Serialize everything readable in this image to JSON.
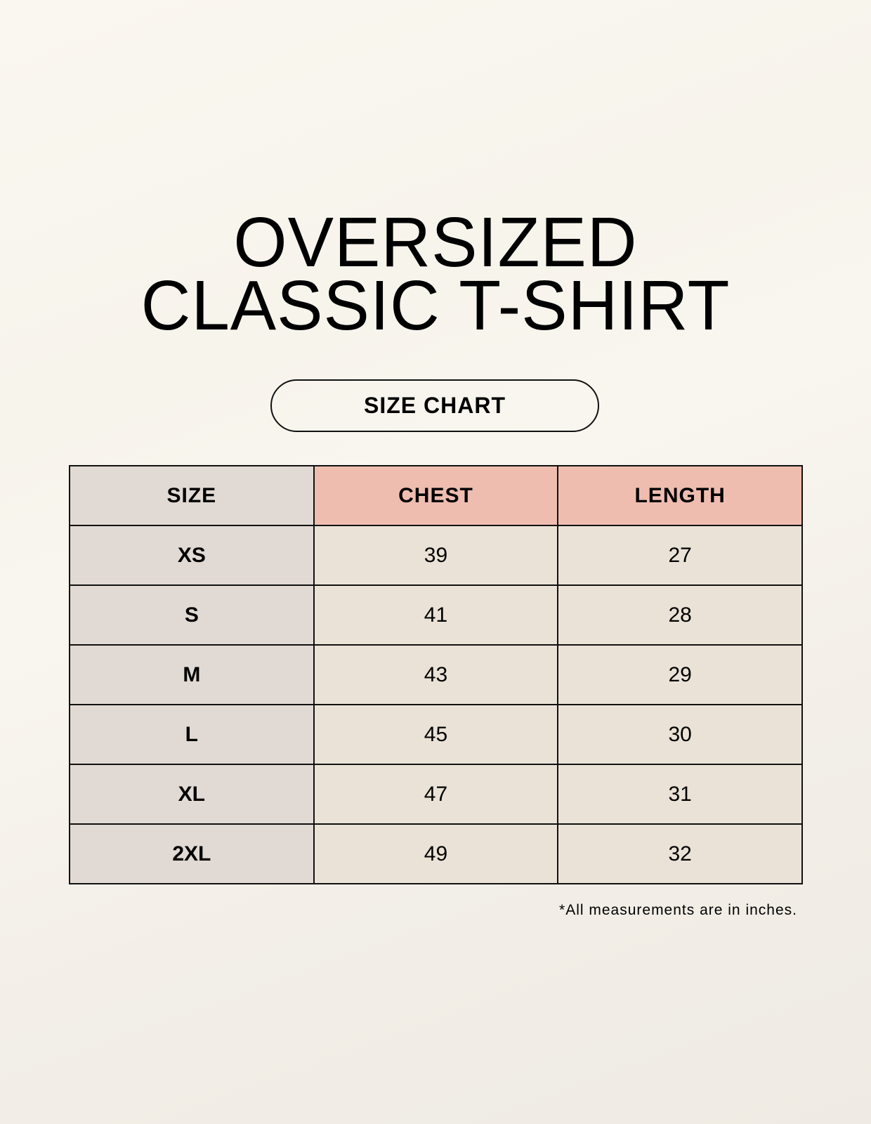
{
  "title": {
    "line1": "OVERSIZED",
    "line2": "CLASSIC T-SHIRT"
  },
  "badge": "SIZE CHART",
  "table": {
    "headers": [
      "SIZE",
      "CHEST",
      "LENGTH"
    ],
    "rows": [
      [
        "XS",
        "39",
        "27"
      ],
      [
        "S",
        "41",
        "28"
      ],
      [
        "M",
        "43",
        "29"
      ],
      [
        "L",
        "45",
        "30"
      ],
      [
        "XL",
        "47",
        "31"
      ],
      [
        "2XL",
        "49",
        "32"
      ]
    ]
  },
  "note": "*All measurements are in inches.",
  "colors": {
    "size_column": "#e1d9d3",
    "header_accent": "#eebdb0",
    "cell": "#ebe2d7"
  }
}
